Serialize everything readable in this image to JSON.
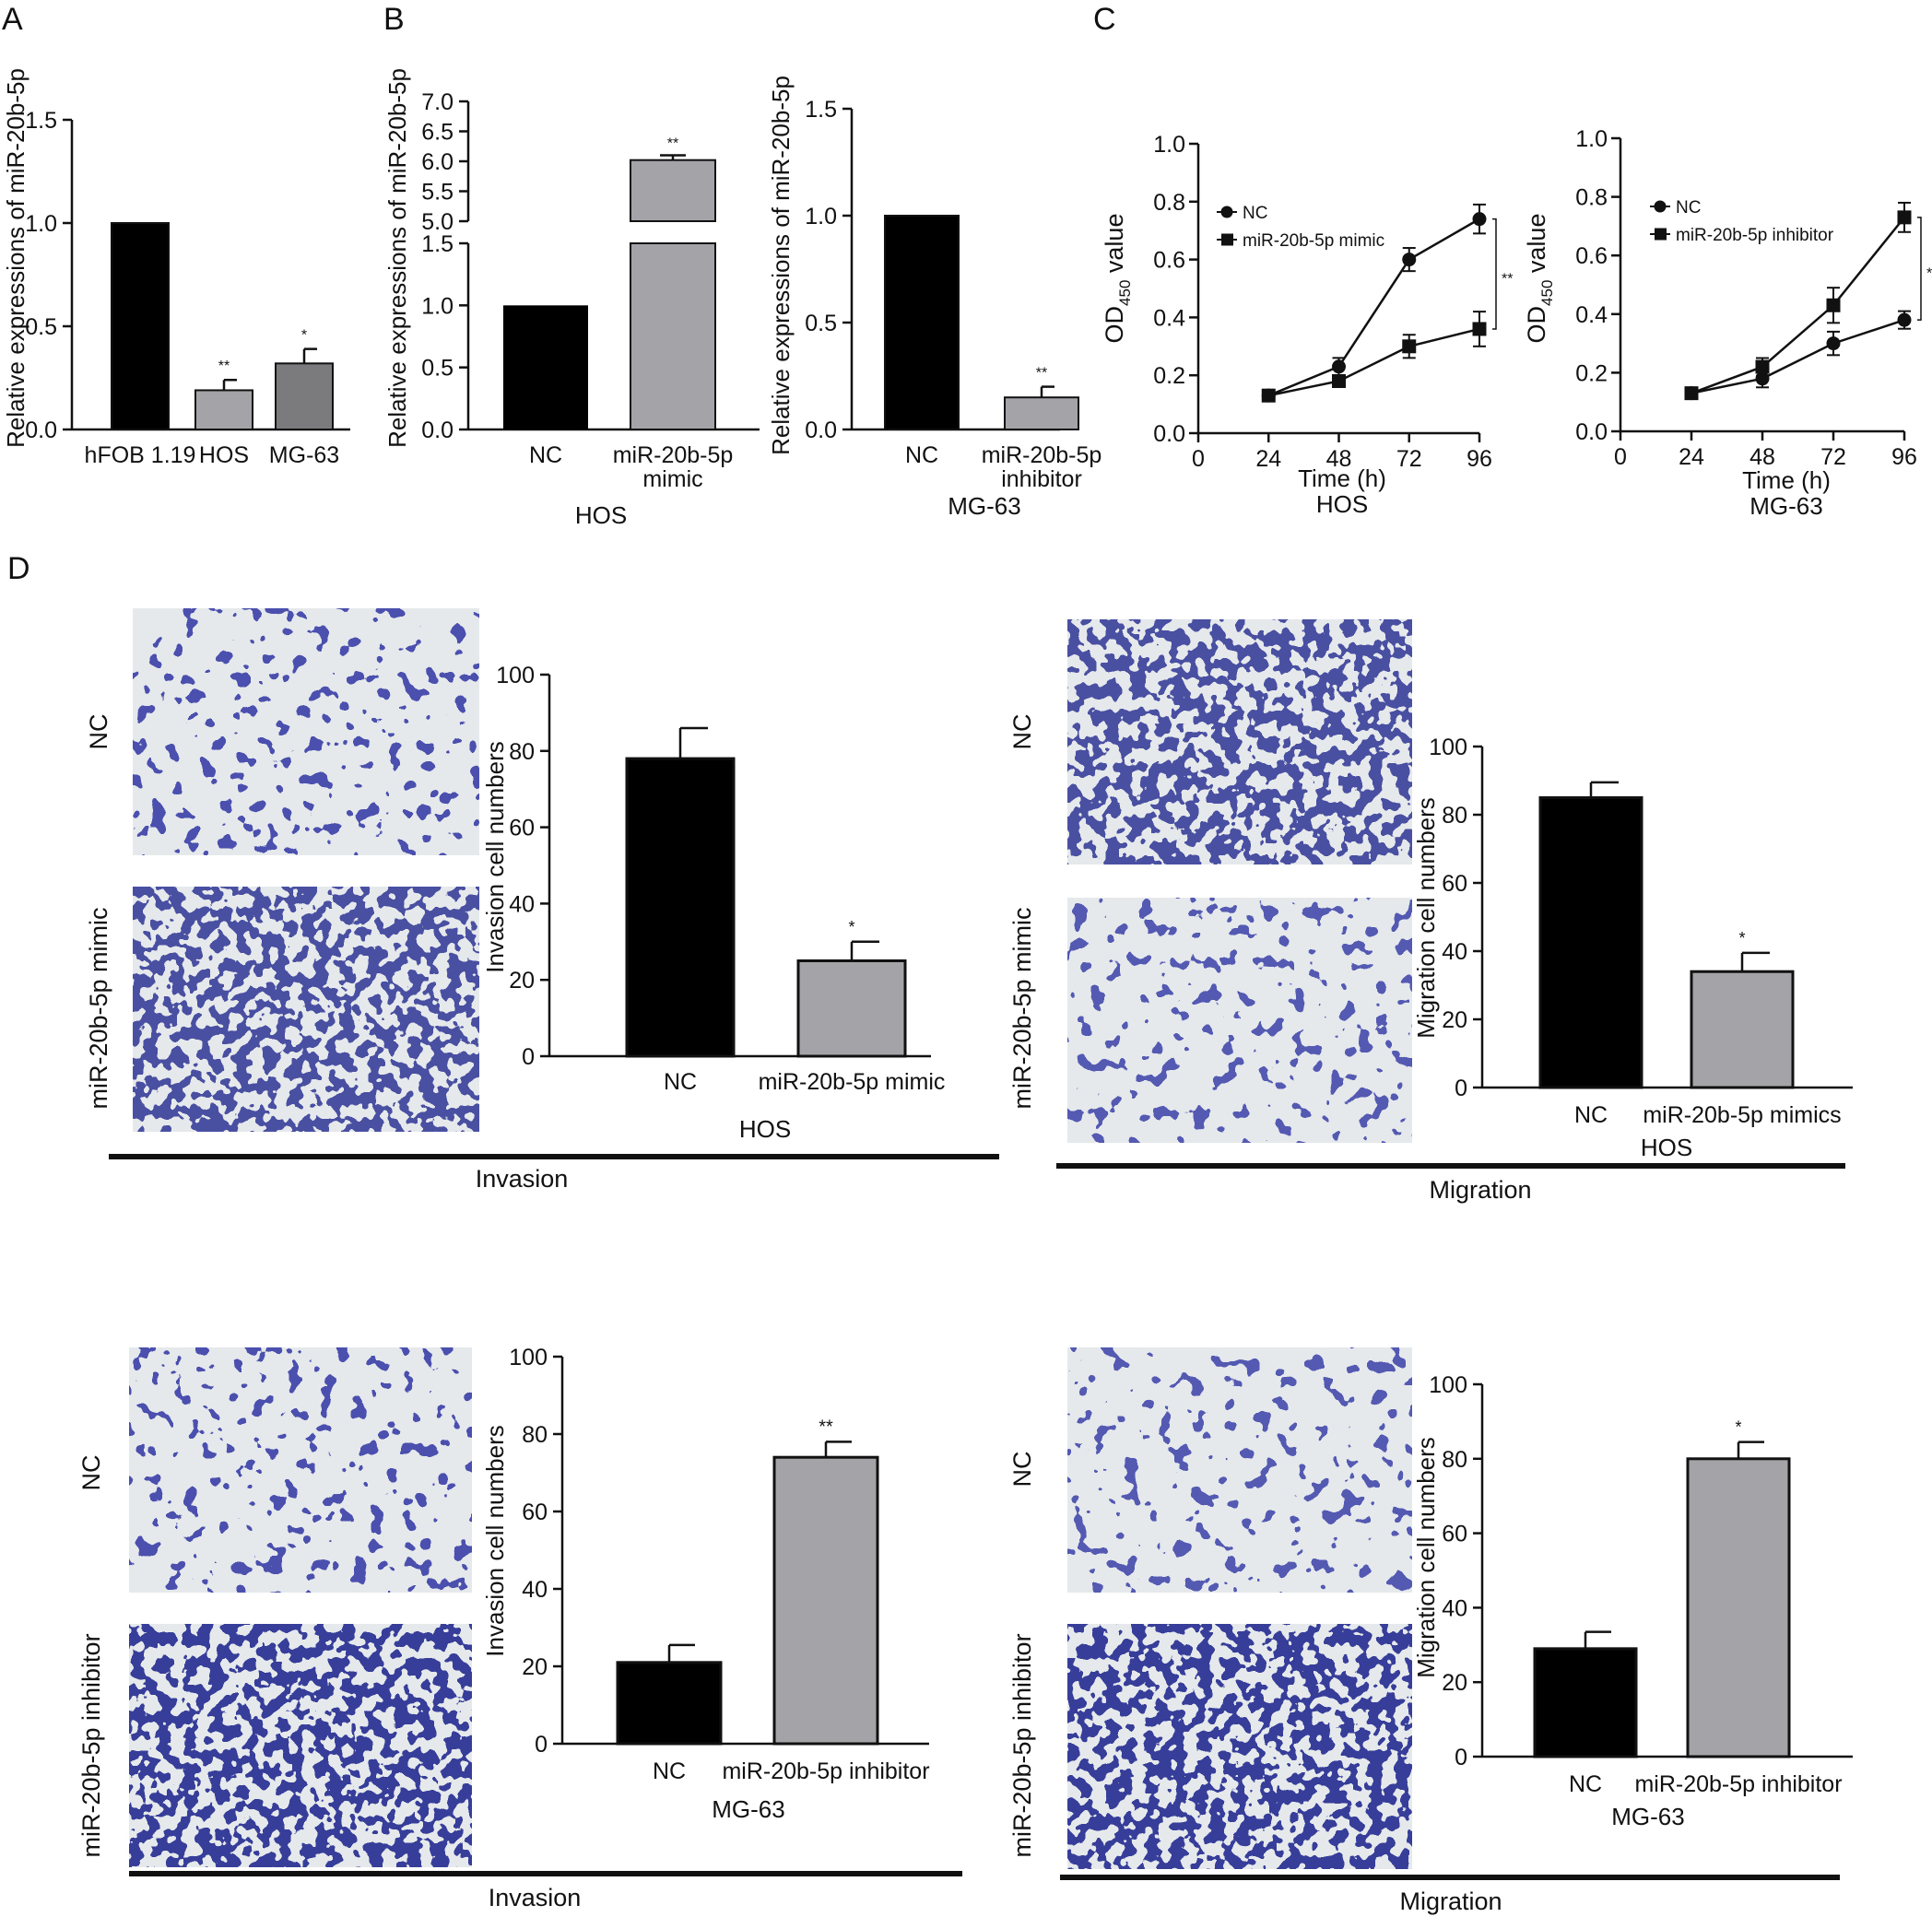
{
  "colors": {
    "black_bar": "#000000",
    "light_gray_bar": "#a4a4a8",
    "mid_gray_bar": "#7b7b7d",
    "cell_stain": "#3a3fa8",
    "cell_background": "#e6e9ec",
    "axis": "#111111"
  },
  "panel_labels": [
    "A",
    "B",
    "C",
    "D"
  ],
  "d_sections": {
    "invasion": "Invasion",
    "migration": "Migration"
  },
  "micrographs": {
    "inv_hos_nc": "NC",
    "inv_hos_mimic": "miR-20b-5p mimic",
    "mig_hos_nc": "NC",
    "mig_hos_mimic": "miR-20b-5p mimic",
    "inv_mg_nc": "NC",
    "inv_mg_inh": "miR-20b-5p inhibitor",
    "mig_mg_nc": "NC",
    "mig_mg_inh": "miR-20b-5p inhibitor"
  },
  "chart_data": [
    {
      "id": "A",
      "type": "bar",
      "title": "",
      "xlabel": "",
      "ylabel": "Relative expressions of miR-20b-5p",
      "categories": [
        "hFOB 1.19",
        "HOS",
        "MG-63"
      ],
      "values": [
        1.0,
        0.19,
        0.32
      ],
      "errors": [
        0,
        0.05,
        0.07
      ],
      "significance": [
        "",
        "**",
        "*"
      ],
      "ylim": [
        0,
        1.5
      ],
      "yticks": [
        "0.0",
        "0.5",
        "1.0",
        "1.5"
      ]
    },
    {
      "id": "B1",
      "type": "bar",
      "title": "",
      "xlabel": "HOS",
      "ylabel": "Relative expressions of miR-20b-5p",
      "categories": [
        "NC",
        "miR-20b-5p\nmimic"
      ],
      "values": [
        1.0,
        6.02
      ],
      "errors": [
        0,
        0.08
      ],
      "significance": [
        "",
        "**"
      ],
      "axis_break": {
        "lower": [
          0,
          1.5
        ],
        "upper": [
          5.0,
          7.0
        ]
      },
      "yticks_lower": [
        "0.0",
        "0.5",
        "1.0",
        "1.5"
      ],
      "yticks_upper": [
        "5.0",
        "5.5",
        "6.0",
        "6.5",
        "7.0"
      ]
    },
    {
      "id": "B2",
      "type": "bar",
      "title": "",
      "xlabel": "MG-63",
      "ylabel": "Relative expressions of miR-20b-5p",
      "categories": [
        "NC",
        "miR-20b-5p\ninhibitor"
      ],
      "values": [
        1.0,
        0.15
      ],
      "errors": [
        0,
        0.05
      ],
      "significance": [
        "",
        "**"
      ],
      "ylim": [
        0,
        1.5
      ],
      "yticks": [
        "0.0",
        "0.5",
        "1.0",
        "1.5"
      ]
    },
    {
      "id": "C1",
      "type": "line",
      "title": "",
      "xlabel": "Time (h)",
      "subtitle": "HOS",
      "ylabel_main": "OD",
      "ylabel_sub": "450",
      "ylabel_rest": " value",
      "x": [
        24,
        48,
        72,
        96
      ],
      "xlim": [
        0,
        96
      ],
      "ylim": [
        0,
        1.0
      ],
      "xticks": [
        "0",
        "24",
        "48",
        "72",
        "96"
      ],
      "yticks": [
        "0.0",
        "0.2",
        "0.4",
        "0.6",
        "0.8",
        "1.0"
      ],
      "series": [
        {
          "name": "NC",
          "marker": "circle",
          "values": [
            0.13,
            0.23,
            0.6,
            0.74
          ],
          "errors": [
            0.01,
            0.03,
            0.04,
            0.05
          ]
        },
        {
          "name": "miR-20b-5p mimic",
          "marker": "square",
          "values": [
            0.13,
            0.18,
            0.3,
            0.36
          ],
          "errors": [
            0.01,
            0.02,
            0.04,
            0.06
          ]
        }
      ],
      "significance": "**",
      "legend": "top-left"
    },
    {
      "id": "C2",
      "type": "line",
      "title": "",
      "xlabel": "Time (h)",
      "subtitle": "MG-63",
      "ylabel_main": "OD",
      "ylabel_sub": "450",
      "ylabel_rest": " value",
      "x": [
        24,
        48,
        72,
        96
      ],
      "xlim": [
        0,
        96
      ],
      "ylim": [
        0,
        1.0
      ],
      "xticks": [
        "0",
        "24",
        "48",
        "72",
        "96"
      ],
      "yticks": [
        "0.0",
        "0.2",
        "0.4",
        "0.6",
        "0.8",
        "1.0"
      ],
      "series": [
        {
          "name": "NC",
          "marker": "circle",
          "values": [
            0.13,
            0.18,
            0.3,
            0.38
          ],
          "errors": [
            0.01,
            0.03,
            0.04,
            0.03
          ]
        },
        {
          "name": "miR-20b-5p inhibitor",
          "marker": "square",
          "values": [
            0.13,
            0.22,
            0.43,
            0.73
          ],
          "errors": [
            0.01,
            0.03,
            0.06,
            0.05
          ]
        }
      ],
      "significance": "*",
      "legend": "top-left"
    },
    {
      "id": "D1",
      "type": "bar",
      "title": "",
      "xlabel": "HOS",
      "ylabel": "Invasion cell numbers",
      "categories": [
        "NC",
        "miR-20b-5p mimic"
      ],
      "values": [
        78,
        25
      ],
      "errors": [
        8,
        5
      ],
      "significance": [
        "",
        "*"
      ],
      "ylim": [
        0,
        100
      ],
      "yticks": [
        "0",
        "20",
        "40",
        "60",
        "80",
        "100"
      ]
    },
    {
      "id": "D2",
      "type": "bar",
      "title": "",
      "xlabel": "HOS",
      "ylabel": "Migration cell numbers",
      "categories": [
        "NC",
        "miR-20b-5p mimics"
      ],
      "values": [
        85,
        34
      ],
      "errors": [
        4.5,
        5.5
      ],
      "significance": [
        "",
        "*"
      ],
      "ylim": [
        0,
        100
      ],
      "yticks": [
        "0",
        "20",
        "40",
        "60",
        "80",
        "100"
      ]
    },
    {
      "id": "D3",
      "type": "bar",
      "title": "",
      "xlabel": "MG-63",
      "ylabel": "Invasion cell numbers",
      "categories": [
        "NC",
        "miR-20b-5p inhibitor"
      ],
      "values": [
        21,
        74
      ],
      "errors": [
        4.5,
        4
      ],
      "significance": [
        "",
        "**"
      ],
      "ylim": [
        0,
        100
      ],
      "yticks": [
        "0",
        "20",
        "40",
        "60",
        "80",
        "100"
      ]
    },
    {
      "id": "D4",
      "type": "bar",
      "title": "",
      "xlabel": "MG-63",
      "ylabel": "Migration cell numbers",
      "categories": [
        "NC",
        "miR-20b-5p inhibitor"
      ],
      "values": [
        29,
        80
      ],
      "errors": [
        4.5,
        4.5
      ],
      "significance": [
        "",
        "*"
      ],
      "ylim": [
        0,
        100
      ],
      "yticks": [
        "0",
        "20",
        "40",
        "60",
        "80",
        "100"
      ]
    }
  ]
}
